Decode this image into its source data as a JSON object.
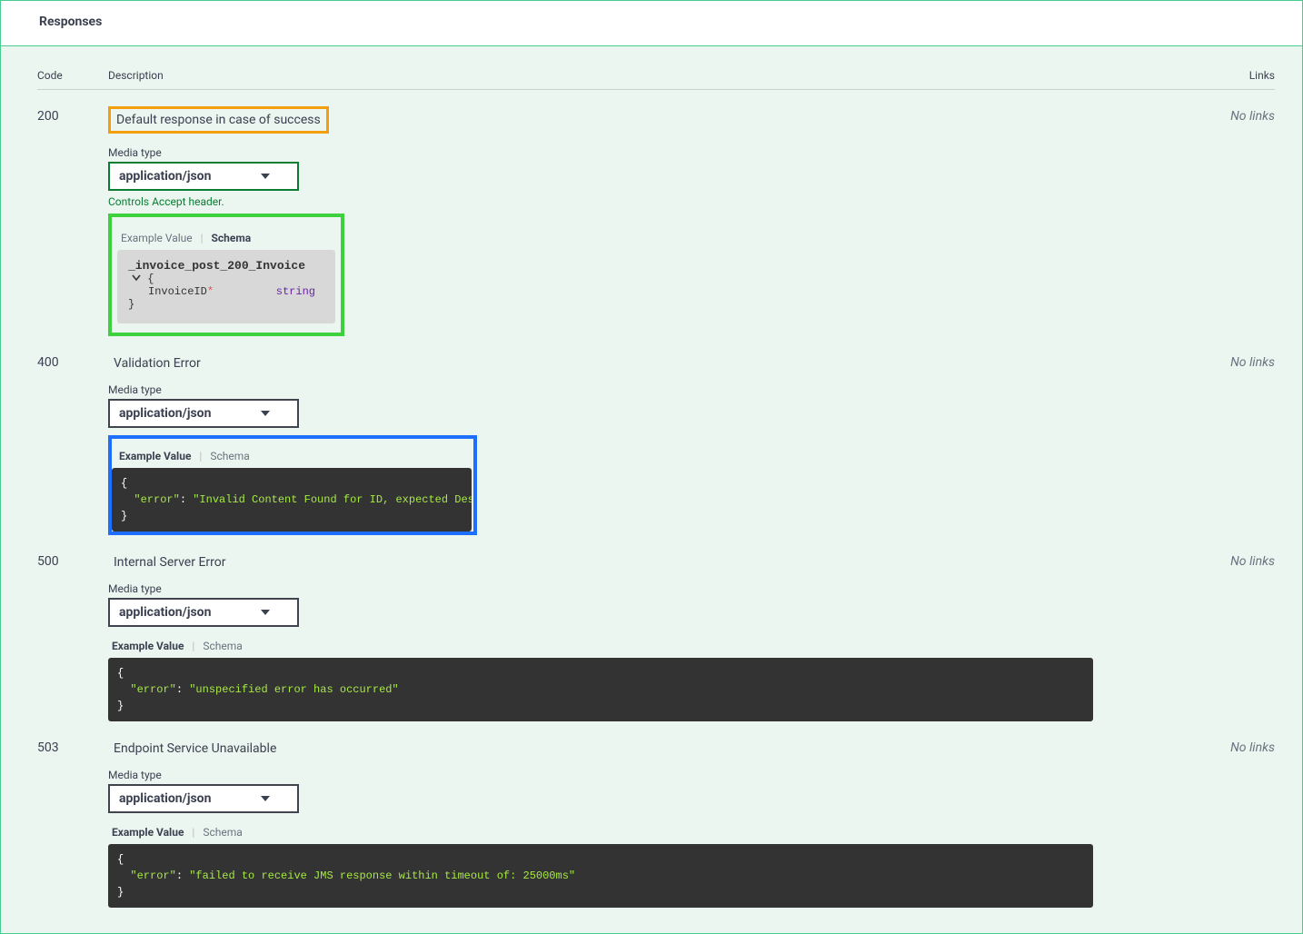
{
  "section_title": "Responses",
  "headers": {
    "code": "Code",
    "description": "Description",
    "links": "Links"
  },
  "no_links_text": "No links",
  "media_type_label": "Media type",
  "media_type_value": "application/json",
  "controls_hint": "Controls Accept header.",
  "tab_example": "Example Value",
  "tab_schema": "Schema",
  "colors": {
    "container_border": "#49cc90",
    "container_bg": "#ecf6f0",
    "orange_highlight": "#f59e0b",
    "green_highlight": "#3dd13d",
    "blue_highlight": "#1e6fff",
    "code_bg": "#333333",
    "code_string": "#a5e844",
    "schema_bg": "#d8d8d8",
    "prop_type_color": "#6b21a8",
    "required_color": "#d9534f",
    "green_text": "#0a7d33"
  },
  "responses": {
    "r200": {
      "code": "200",
      "description": "Default response in case of success",
      "schema_name": "_invoice_post_200_Invoice",
      "prop_name": "InvoiceID",
      "prop_type": "string"
    },
    "r400": {
      "code": "400",
      "description": "Validation Error",
      "example": "{\n  \"error\": \"Invalid Content Found for ID, expected Description\"\n}"
    },
    "r500": {
      "code": "500",
      "description": "Internal Server Error",
      "example": "{\n  \"error\": \"unspecified error has occurred\"\n}"
    },
    "r503": {
      "code": "503",
      "description": "Endpoint Service Unavailable",
      "example": "{\n  \"error\": \"failed to receive JMS response within timeout of: 25000ms\"\n}"
    }
  }
}
